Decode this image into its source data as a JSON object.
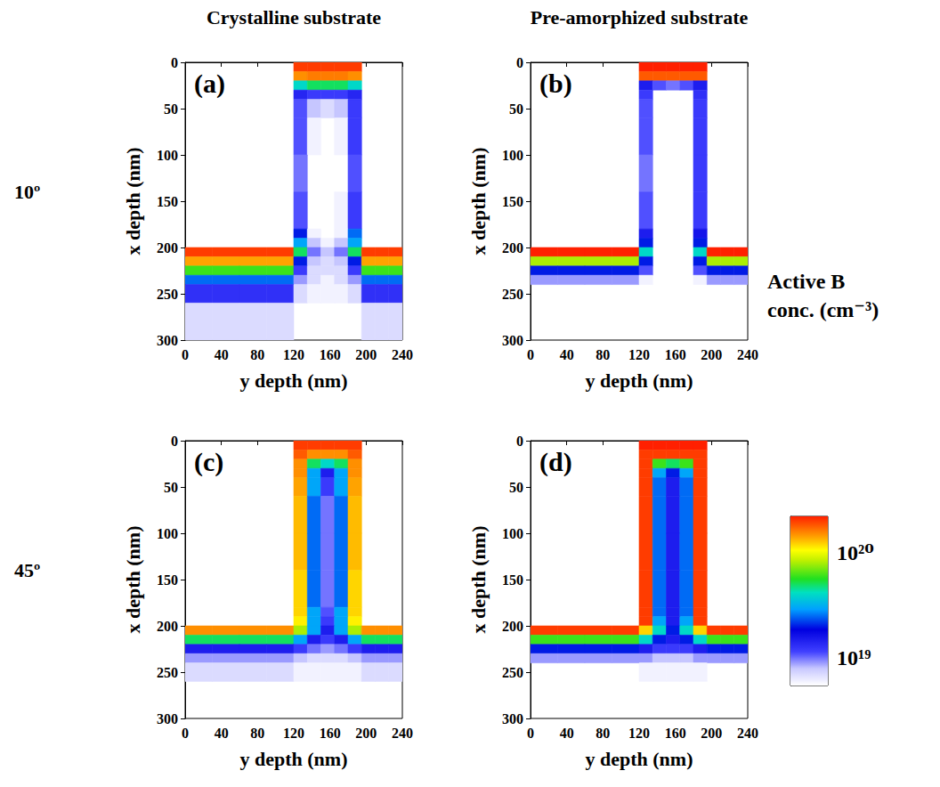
{
  "column_titles": [
    "Crystalline substrate",
    "Pre-amorphized substrate"
  ],
  "row_titles": [
    "10º",
    "45º"
  ],
  "color_bar": {
    "title": "Active B conc. (cm⁻³)",
    "range": [
      5.5e+18,
      2.2e+20
    ],
    "ticks": [
      {
        "value": 1e+19,
        "label": "10¹⁹"
      },
      {
        "value": 1e+20,
        "label": "10²⁰"
      }
    ],
    "log": true
  },
  "chart_data": [
    {
      "type": "heatmap",
      "title": "(a)",
      "xlabel": "y depth (nm)",
      "ylabel": "x depth (nm)",
      "xlim": [
        0,
        240
      ],
      "xticks": [
        0,
        40,
        80,
        120,
        160,
        200,
        240
      ],
      "ylim": [
        300,
        0
      ],
      "yticks": [
        0,
        50,
        100,
        150,
        200,
        250,
        300
      ],
      "x_edges": [
        0,
        30,
        60,
        90,
        120,
        135,
        150,
        165,
        180,
        195,
        210,
        225,
        240
      ],
      "y_edges": [
        0,
        10,
        20,
        30,
        40,
        60,
        100,
        140,
        180,
        190,
        200,
        210,
        220,
        230,
        240,
        260,
        300
      ],
      "cells": [
        [
          null,
          null,
          null,
          null,
          2e+20,
          2e+20,
          2e+20,
          2e+20,
          2e+20,
          null,
          null,
          null
        ],
        [
          null,
          null,
          null,
          null,
          1.5e+20,
          1.6e+20,
          1.6e+20,
          1.6e+20,
          1.5e+20,
          null,
          null,
          null
        ],
        [
          null,
          null,
          null,
          null,
          4e+19,
          5e+19,
          5e+19,
          5e+19,
          4e+19,
          null,
          null,
          null
        ],
        [
          null,
          null,
          null,
          null,
          1.4e+19,
          1.2e+19,
          1.2e+19,
          1.2e+19,
          1.4e+19,
          null,
          null,
          null
        ],
        [
          null,
          null,
          null,
          null,
          1.1e+19,
          8e+18,
          7e+18,
          8e+18,
          1.2e+19,
          null,
          null,
          null
        ],
        [
          null,
          null,
          null,
          null,
          1.1e+19,
          6e+18,
          5e+18,
          6e+18,
          1.2e+19,
          null,
          null,
          null
        ],
        [
          null,
          null,
          null,
          null,
          1e+19,
          5e+18,
          5e+18,
          5e+18,
          1.1e+19,
          null,
          null,
          null
        ],
        [
          null,
          null,
          null,
          null,
          1.1e+19,
          5e+18,
          5e+18,
          6e+18,
          1.2e+19,
          null,
          null,
          null
        ],
        [
          null,
          null,
          null,
          null,
          2e+19,
          6e+18,
          5e+18,
          6e+18,
          2.5e+19,
          null,
          null,
          null
        ],
        [
          null,
          null,
          null,
          null,
          3e+19,
          8e+18,
          6e+18,
          8e+18,
          3e+19,
          null,
          null,
          null
        ],
        [
          2e+20,
          2e+20,
          2e+20,
          2e+20,
          5e+19,
          1e+19,
          8e+18,
          1e+19,
          5e+19,
          2e+20,
          2e+20,
          2e+20
        ],
        [
          1.4e+20,
          1.4e+20,
          1.4e+20,
          1.4e+20,
          2e+19,
          8e+18,
          7e+18,
          8e+18,
          2e+19,
          1.4e+20,
          1.4e+20,
          1.4e+20
        ],
        [
          6e+19,
          6e+19,
          6e+19,
          6e+19,
          1.2e+19,
          7e+18,
          7e+18,
          7e+18,
          1.2e+19,
          6e+19,
          6e+19,
          6e+19
        ],
        [
          2.5e+19,
          2.5e+19,
          2.5e+19,
          2.5e+19,
          9e+18,
          7e+18,
          6e+18,
          7e+18,
          9e+18,
          2.5e+19,
          2.5e+19,
          2.5e+19
        ],
        [
          1.3e+19,
          1.3e+19,
          1.3e+19,
          1.3e+19,
          7e+18,
          6e+18,
          6e+18,
          6e+18,
          7e+18,
          1.3e+19,
          1.3e+19,
          1.3e+19
        ],
        [
          7e+18,
          7e+18,
          7e+18,
          7e+18,
          5e+18,
          5e+18,
          5e+18,
          5e+18,
          5e+18,
          7e+18,
          7e+18,
          7e+18
        ]
      ]
    },
    {
      "type": "heatmap",
      "title": "(b)",
      "xlabel": "y depth (nm)",
      "ylabel": "x depth (nm)",
      "xlim": [
        0,
        240
      ],
      "xticks": [
        0,
        40,
        80,
        120,
        160,
        200,
        240
      ],
      "ylim": [
        300,
        0
      ],
      "yticks": [
        0,
        50,
        100,
        150,
        200,
        250,
        300
      ],
      "x_edges": [
        0,
        30,
        60,
        90,
        120,
        135,
        150,
        165,
        180,
        195,
        210,
        225,
        240
      ],
      "y_edges": [
        0,
        10,
        20,
        30,
        40,
        60,
        100,
        140,
        180,
        190,
        200,
        210,
        220,
        230,
        240,
        260,
        300
      ],
      "cells": [
        [
          null,
          null,
          null,
          null,
          2.2e+20,
          2.2e+20,
          2.2e+20,
          2.2e+20,
          2.2e+20,
          null,
          null,
          null
        ],
        [
          null,
          null,
          null,
          null,
          1.8e+20,
          1.8e+20,
          1.8e+20,
          1.8e+20,
          1.8e+20,
          null,
          null,
          null
        ],
        [
          null,
          null,
          null,
          null,
          1.5e+19,
          1.1e+19,
          1e+19,
          1.1e+19,
          1.5e+19,
          null,
          null,
          null
        ],
        [
          null,
          null,
          null,
          null,
          1.2e+19,
          3e+18,
          3e+18,
          3e+18,
          1.3e+19,
          null,
          null,
          null
        ],
        [
          null,
          null,
          null,
          null,
          1.1e+19,
          3e+18,
          3e+18,
          3e+18,
          1.2e+19,
          null,
          null,
          null
        ],
        [
          null,
          null,
          null,
          null,
          1.1e+19,
          3e+18,
          3e+18,
          3e+18,
          1.2e+19,
          null,
          null,
          null
        ],
        [
          null,
          null,
          null,
          null,
          1e+19,
          3e+18,
          3e+18,
          3e+18,
          1.2e+19,
          null,
          null,
          null
        ],
        [
          null,
          null,
          null,
          null,
          1.1e+19,
          3e+18,
          3e+18,
          3e+18,
          1.2e+19,
          null,
          null,
          null
        ],
        [
          null,
          null,
          null,
          null,
          1.5e+19,
          3e+18,
          3e+18,
          3e+18,
          1.6e+19,
          null,
          null,
          null
        ],
        [
          null,
          null,
          null,
          null,
          2e+19,
          4e+18,
          3e+18,
          4e+18,
          2e+19,
          null,
          null,
          null
        ],
        [
          2.2e+20,
          2.2e+20,
          2.2e+20,
          2.2e+20,
          4e+19,
          5e+18,
          3e+18,
          5e+18,
          4e+19,
          2.2e+20,
          2.2e+20,
          2.2e+20
        ],
        [
          8e+19,
          8e+19,
          8e+19,
          8e+19,
          2e+19,
          4e+18,
          3e+18,
          4e+18,
          2e+19,
          8e+19,
          8e+19,
          8e+19
        ],
        [
          2e+19,
          2e+19,
          2e+19,
          2e+19,
          1.1e+19,
          4e+18,
          3e+18,
          4e+18,
          1.1e+19,
          2e+19,
          2e+19,
          2e+19
        ],
        [
          9e+18,
          9e+18,
          9e+18,
          9e+18,
          6e+18,
          3e+18,
          3e+18,
          3e+18,
          6e+18,
          9e+18,
          9e+18,
          9e+18
        ],
        [
          4e+18,
          4e+18,
          4e+18,
          4e+18,
          3e+18,
          3e+18,
          3e+18,
          3e+18,
          3e+18,
          4e+18,
          4e+18,
          4e+18
        ],
        [
          3e+18,
          3e+18,
          3e+18,
          3e+18,
          3e+18,
          3e+18,
          3e+18,
          3e+18,
          3e+18,
          3e+18,
          3e+18,
          3e+18
        ]
      ]
    },
    {
      "type": "heatmap",
      "title": "(c)",
      "xlabel": "y depth (nm)",
      "ylabel": "x depth (nm)",
      "xlim": [
        0,
        240
      ],
      "xticks": [
        0,
        40,
        80,
        120,
        160,
        200,
        240
      ],
      "ylim": [
        300,
        0
      ],
      "yticks": [
        0,
        50,
        100,
        150,
        200,
        250,
        300
      ],
      "x_edges": [
        0,
        30,
        60,
        90,
        120,
        135,
        150,
        165,
        180,
        195,
        210,
        225,
        240
      ],
      "y_edges": [
        0,
        10,
        20,
        30,
        40,
        60,
        100,
        140,
        180,
        190,
        200,
        210,
        220,
        230,
        240,
        260,
        300
      ],
      "cells": [
        [
          null,
          null,
          null,
          null,
          2e+20,
          2e+20,
          2e+20,
          2e+20,
          2e+20,
          null,
          null,
          null
        ],
        [
          null,
          null,
          null,
          null,
          1.8e+20,
          1.5e+20,
          1.5e+20,
          1.5e+20,
          1.8e+20,
          null,
          null,
          null
        ],
        [
          null,
          null,
          null,
          null,
          1.5e+20,
          5e+19,
          4e+19,
          5e+19,
          1.5e+20,
          null,
          null,
          null
        ],
        [
          null,
          null,
          null,
          null,
          1.5e+20,
          3e+19,
          1.5e+19,
          3e+19,
          1.5e+20,
          null,
          null,
          null
        ],
        [
          null,
          null,
          null,
          null,
          1.4e+20,
          3e+19,
          1.2e+19,
          3e+19,
          1.4e+20,
          null,
          null,
          null
        ],
        [
          null,
          null,
          null,
          null,
          1.3e+20,
          2.5e+19,
          1e+19,
          2.5e+19,
          1.3e+20,
          null,
          null,
          null
        ],
        [
          null,
          null,
          null,
          null,
          1.3e+20,
          2.5e+19,
          1e+19,
          2.5e+19,
          1.3e+20,
          null,
          null,
          null
        ],
        [
          null,
          null,
          null,
          null,
          1.2e+20,
          2.5e+19,
          1e+19,
          2.5e+19,
          1.2e+20,
          null,
          null,
          null
        ],
        [
          null,
          null,
          null,
          null,
          1.2e+20,
          3e+19,
          1.1e+19,
          3e+19,
          1.2e+20,
          null,
          null,
          null
        ],
        [
          null,
          null,
          null,
          null,
          1.1e+20,
          3e+19,
          1.2e+19,
          3e+19,
          1.1e+20,
          null,
          null,
          null
        ],
        [
          1.5e+20,
          1.5e+20,
          1.5e+20,
          1.5e+20,
          8e+19,
          3e+19,
          1.5e+19,
          3e+19,
          8e+19,
          1.5e+20,
          1.5e+20,
          1.5e+20
        ],
        [
          5e+19,
          5e+19,
          5e+19,
          5e+19,
          3e+19,
          1.5e+19,
          1.2e+19,
          1.5e+19,
          3e+19,
          5e+19,
          5e+19,
          5e+19
        ],
        [
          1.5e+19,
          1.5e+19,
          1.5e+19,
          1.5e+19,
          1.2e+19,
          1e+19,
          9e+18,
          1e+19,
          1.2e+19,
          1.5e+19,
          1.5e+19,
          1.5e+19
        ],
        [
          9e+18,
          9e+18,
          9e+18,
          9e+18,
          8e+18,
          7e+18,
          7e+18,
          7e+18,
          8e+18,
          9e+18,
          9e+18,
          9e+18
        ],
        [
          7e+18,
          7e+18,
          7e+18,
          7e+18,
          6e+18,
          6e+18,
          6e+18,
          6e+18,
          6e+18,
          7e+18,
          7e+18,
          7e+18
        ],
        [
          5e+18,
          5e+18,
          5e+18,
          5e+18,
          5e+18,
          5e+18,
          5e+18,
          5e+18,
          5e+18,
          5e+18,
          5e+18,
          5e+18
        ]
      ]
    },
    {
      "type": "heatmap",
      "title": "(d)",
      "xlabel": "y depth (nm)",
      "ylabel": "x depth (nm)",
      "xlim": [
        0,
        240
      ],
      "xticks": [
        0,
        40,
        80,
        120,
        160,
        200,
        240
      ],
      "ylim": [
        300,
        0
      ],
      "yticks": [
        0,
        50,
        100,
        150,
        200,
        250,
        300
      ],
      "x_edges": [
        0,
        30,
        60,
        90,
        120,
        135,
        150,
        165,
        180,
        195,
        210,
        225,
        240
      ],
      "y_edges": [
        0,
        10,
        20,
        30,
        40,
        60,
        100,
        140,
        180,
        190,
        200,
        210,
        220,
        230,
        240,
        260,
        300
      ],
      "cells": [
        [
          null,
          null,
          null,
          null,
          2.2e+20,
          2.2e+20,
          2.2e+20,
          2.2e+20,
          2.2e+20,
          null,
          null,
          null
        ],
        [
          null,
          null,
          null,
          null,
          2e+20,
          2e+20,
          2e+20,
          2e+20,
          2e+20,
          null,
          null,
          null
        ],
        [
          null,
          null,
          null,
          null,
          2e+20,
          6e+19,
          5e+19,
          6e+19,
          2e+20,
          null,
          null,
          null
        ],
        [
          null,
          null,
          null,
          null,
          2e+20,
          3e+19,
          2e+19,
          3e+19,
          2e+20,
          null,
          null,
          null
        ],
        [
          null,
          null,
          null,
          null,
          2e+20,
          2.5e+19,
          1.5e+19,
          2.5e+19,
          2e+20,
          null,
          null,
          null
        ],
        [
          null,
          null,
          null,
          null,
          2e+20,
          2.5e+19,
          1.5e+19,
          2.5e+19,
          2e+20,
          null,
          null,
          null
        ],
        [
          null,
          null,
          null,
          null,
          2e+20,
          2.5e+19,
          1.5e+19,
          2.5e+19,
          2e+20,
          null,
          null,
          null
        ],
        [
          null,
          null,
          null,
          null,
          2e+20,
          2.5e+19,
          1.5e+19,
          2.5e+19,
          2e+20,
          null,
          null,
          null
        ],
        [
          null,
          null,
          null,
          null,
          2e+20,
          2.5e+19,
          1.5e+19,
          2.5e+19,
          2e+20,
          null,
          null,
          null
        ],
        [
          null,
          null,
          null,
          null,
          2e+20,
          3e+19,
          1.5e+19,
          3e+19,
          2e+20,
          null,
          null,
          null
        ],
        [
          2e+20,
          2e+20,
          2e+20,
          2e+20,
          1.2e+20,
          4e+19,
          2e+19,
          4e+19,
          1.2e+20,
          2e+20,
          2e+20,
          2e+20
        ],
        [
          6e+19,
          6e+19,
          6e+19,
          6e+19,
          4e+19,
          2e+19,
          1.5e+19,
          2e+19,
          4e+19,
          6e+19,
          6e+19,
          6e+19
        ],
        [
          2e+19,
          2e+19,
          2e+19,
          2e+19,
          1.5e+19,
          1.2e+19,
          1.2e+19,
          1.2e+19,
          1.5e+19,
          2e+19,
          2e+19,
          2e+19
        ],
        [
          9e+18,
          9e+18,
          9e+18,
          9e+18,
          9e+18,
          8e+18,
          8e+18,
          8e+18,
          9e+18,
          9e+18,
          9e+18,
          9e+18
        ],
        [
          5e+18,
          5e+18,
          5e+18,
          5e+18,
          6e+18,
          6e+18,
          6e+18,
          6e+18,
          6e+18,
          5e+18,
          5e+18,
          5e+18
        ],
        [
          4e+18,
          4e+18,
          4e+18,
          4e+18,
          4e+18,
          4e+18,
          4e+18,
          4e+18,
          4e+18,
          4e+18,
          4e+18,
          4e+18
        ]
      ]
    }
  ]
}
